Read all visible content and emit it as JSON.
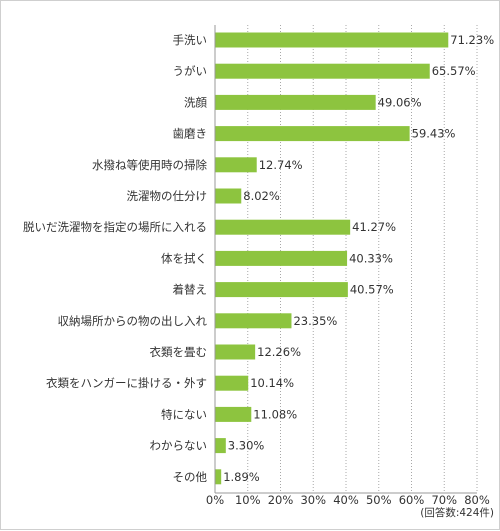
{
  "chart_data": {
    "type": "bar",
    "orientation": "horizontal",
    "categories": [
      "手洗い",
      "うがい",
      "洗顔",
      "歯磨き",
      "水撥ね等使用時の掃除",
      "洗濯物の仕分け",
      "脱いだ洗濯物を指定の場所に入れる",
      "体を拭く",
      "着替え",
      "収納場所からの物の出し入れ",
      "衣類を畳む",
      "衣類をハンガーに掛ける・外す",
      "特にない",
      "わからない",
      "その他"
    ],
    "values": [
      71.23,
      65.57,
      49.06,
      59.43,
      12.74,
      8.02,
      41.27,
      40.33,
      40.57,
      23.35,
      12.26,
      10.14,
      11.08,
      3.3,
      1.89
    ],
    "value_labels": [
      "71.23%",
      "65.57%",
      "49.06%",
      "59.43%",
      "12.74%",
      "8.02%",
      "41.27%",
      "40.33%",
      "40.57%",
      "23.35%",
      "12.26%",
      "10.14%",
      "11.08%",
      "3.30%",
      "1.89%"
    ],
    "xlim": [
      0,
      80
    ],
    "ticks": [
      "0%",
      "10%",
      "20%",
      "30%",
      "40%",
      "50%",
      "60%",
      "70%",
      "80%"
    ],
    "grid": true,
    "bar_color": "#8dc43f",
    "note": "(回答数:424件)"
  }
}
